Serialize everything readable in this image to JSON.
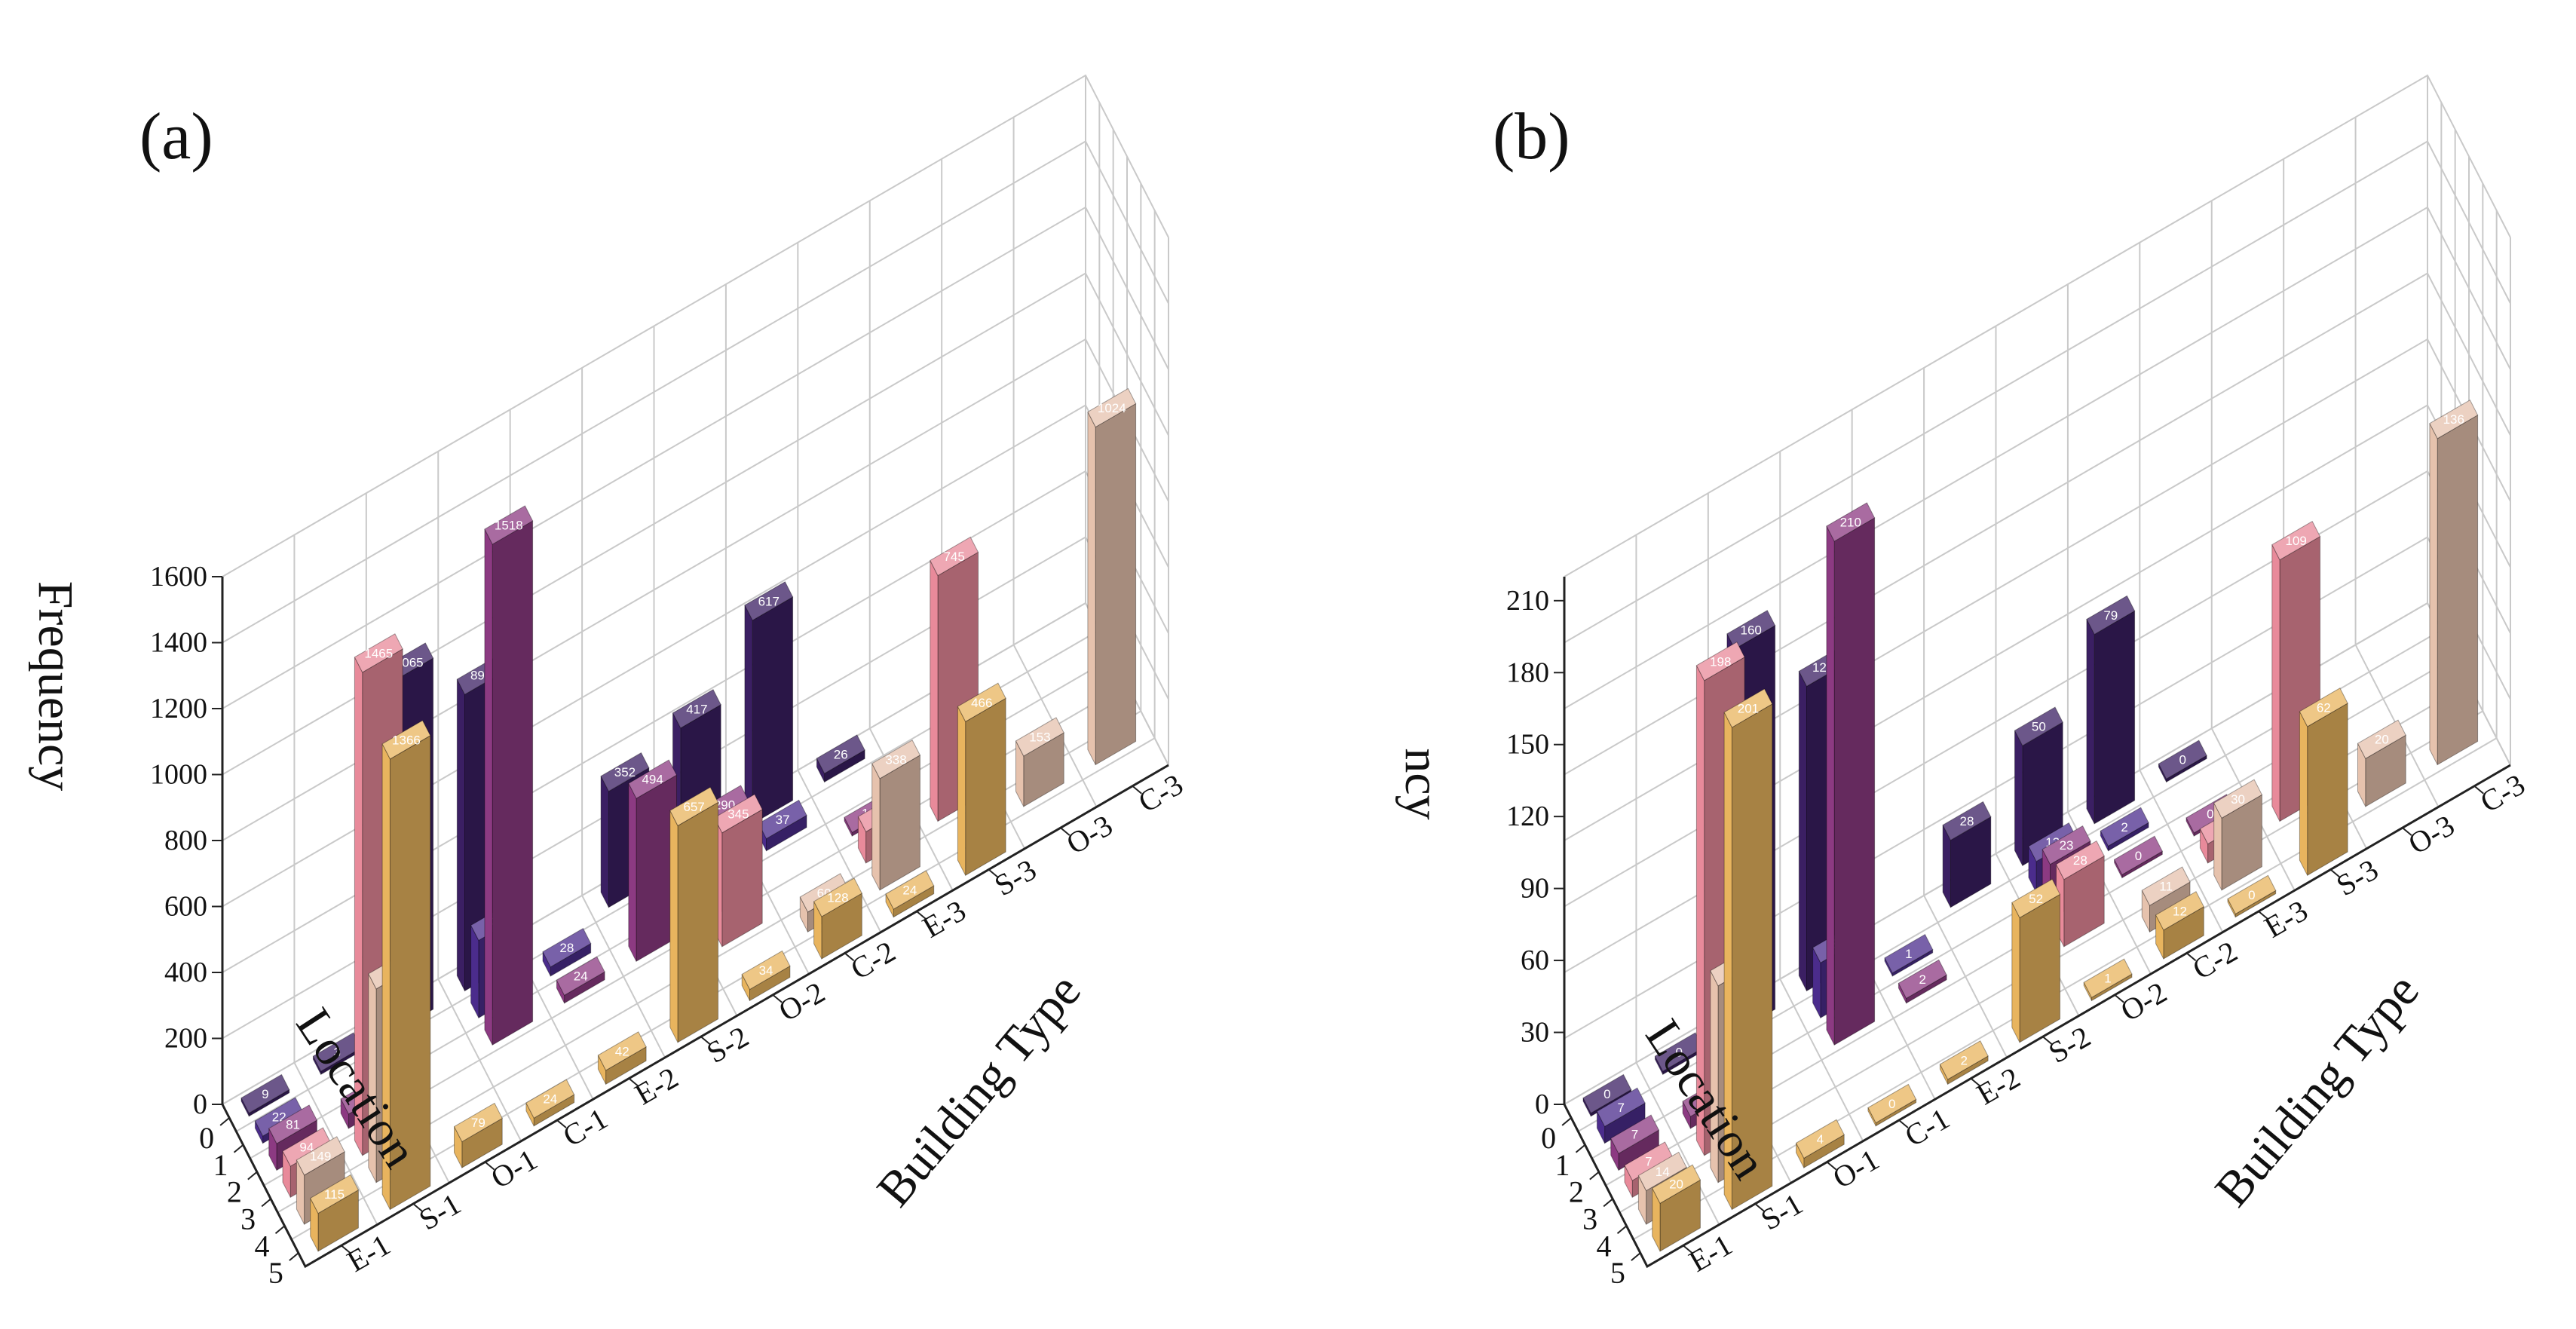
{
  "chart_data": [
    {
      "type": "bar3d",
      "panel_label": "(a)",
      "z_label": "Frequency",
      "x_label": "Location",
      "y_label": "Building Type",
      "x_ticks": [
        "0",
        "1",
        "2",
        "3",
        "4",
        "5"
      ],
      "y_ticks": [
        "E-1",
        "S-1",
        "O-1",
        "C-1",
        "E-2",
        "S-2",
        "O-2",
        "C-2",
        "E-3",
        "S-3",
        "O-3",
        "C-3"
      ],
      "z_ticks": [
        "0",
        "200",
        "400",
        "600",
        "800",
        "1000",
        "1200",
        "1400",
        "1600"
      ],
      "zlim": [
        0,
        1600
      ],
      "series": [
        {
          "location": "0",
          "color": "#3b1f63",
          "points": [
            {
              "type": "E-1",
              "value": 9
            },
            {
              "type": "S-1",
              "value": 3
            },
            {
              "type": "O-1",
              "value": 1065
            },
            {
              "type": "C-1",
              "value": 899
            },
            {
              "type": "S-2",
              "value": 352
            },
            {
              "type": "O-2",
              "value": 417
            },
            {
              "type": "C-2",
              "value": 617
            },
            {
              "type": "E-3",
              "value": 26
            }
          ]
        },
        {
          "location": "1",
          "color": "#4b2c8c",
          "points": [
            {
              "type": "E-1",
              "value": 22
            },
            {
              "type": "C-1",
              "value": 235
            },
            {
              "type": "E-2",
              "value": 28
            },
            {
              "type": "O-2",
              "value": 155
            },
            {
              "type": "C-2",
              "value": 37
            }
          ]
        },
        {
          "location": "2",
          "color": "#8c3a82",
          "points": [
            {
              "type": "E-1",
              "value": 81
            },
            {
              "type": "S-1",
              "value": 44
            },
            {
              "type": "C-1",
              "value": 1518
            },
            {
              "type": "E-2",
              "value": 24
            },
            {
              "type": "S-2",
              "value": 494
            },
            {
              "type": "O-2",
              "value": 290
            },
            {
              "type": "E-3",
              "value": 11
            }
          ]
        },
        {
          "location": "3",
          "color": "#e88a9a",
          "points": [
            {
              "type": "E-1",
              "value": 94
            },
            {
              "type": "S-1",
              "value": 1465
            },
            {
              "type": "O-2",
              "value": 345
            },
            {
              "type": "E-3",
              "value": 95
            },
            {
              "type": "S-3",
              "value": 745
            }
          ]
        },
        {
          "location": "4",
          "color": "#e6c2ad",
          "points": [
            {
              "type": "E-1",
              "value": 149
            },
            {
              "type": "S-1",
              "value": 587
            },
            {
              "type": "C-2",
              "value": 60
            },
            {
              "type": "E-3",
              "value": 338
            },
            {
              "type": "O-3",
              "value": 153
            },
            {
              "type": "C-3",
              "value": 1024
            }
          ]
        },
        {
          "location": "5",
          "color": "#e8b45e",
          "points": [
            {
              "type": "E-1",
              "value": 115
            },
            {
              "type": "S-1",
              "value": 1366
            },
            {
              "type": "O-1",
              "value": 79
            },
            {
              "type": "C-1",
              "value": 24
            },
            {
              "type": "E-2",
              "value": 42
            },
            {
              "type": "S-2",
              "value": 657
            },
            {
              "type": "O-2",
              "value": 34
            },
            {
              "type": "C-2",
              "value": 128
            },
            {
              "type": "E-3",
              "value": 24
            },
            {
              "type": "S-3",
              "value": 466
            }
          ]
        }
      ]
    },
    {
      "type": "bar3d",
      "panel_label": "(b)",
      "z_label": "ncy",
      "x_label": "Location",
      "y_label": "Building Type",
      "x_ticks": [
        "0",
        "1",
        "2",
        "3",
        "4",
        "5"
      ],
      "y_ticks": [
        "E-1",
        "S-1",
        "O-1",
        "C-1",
        "E-2",
        "S-2",
        "O-2",
        "C-2",
        "E-3",
        "S-3",
        "O-3",
        "C-3"
      ],
      "z_ticks": [
        "0",
        "30",
        "60",
        "90",
        "120",
        "150",
        "180",
        "210"
      ],
      "zlim": [
        0,
        220
      ],
      "series": [
        {
          "location": "0",
          "color": "#3b1f63",
          "points": [
            {
              "type": "E-1",
              "value": 0
            },
            {
              "type": "S-1",
              "value": 0
            },
            {
              "type": "O-1",
              "value": 160
            },
            {
              "type": "C-1",
              "value": 127
            },
            {
              "type": "S-2",
              "value": 28
            },
            {
              "type": "O-2",
              "value": 50
            },
            {
              "type": "C-2",
              "value": 79
            },
            {
              "type": "E-3",
              "value": 0
            }
          ]
        },
        {
          "location": "1",
          "color": "#4b2c8c",
          "points": [
            {
              "type": "E-1",
              "value": 7
            },
            {
              "type": "C-1",
              "value": 23
            },
            {
              "type": "E-2",
              "value": 1
            },
            {
              "type": "O-2",
              "value": 13
            },
            {
              "type": "C-2",
              "value": 2
            }
          ]
        },
        {
          "location": "2",
          "color": "#8c3a82",
          "points": [
            {
              "type": "E-1",
              "value": 7
            },
            {
              "type": "S-1",
              "value": 5
            },
            {
              "type": "C-1",
              "value": 210
            },
            {
              "type": "E-2",
              "value": 2
            },
            {
              "type": "O-2",
              "value": 23
            },
            {
              "type": "C-2",
              "value": 0
            },
            {
              "type": "E-3",
              "value": 0
            }
          ]
        },
        {
          "location": "3",
          "color": "#e88a9a",
          "points": [
            {
              "type": "E-1",
              "value": 7
            },
            {
              "type": "S-1",
              "value": 198
            },
            {
              "type": "O-2",
              "value": 28
            },
            {
              "type": "E-3",
              "value": 8
            },
            {
              "type": "S-3",
              "value": 109
            }
          ]
        },
        {
          "location": "4",
          "color": "#e6c2ad",
          "points": [
            {
              "type": "E-1",
              "value": 14
            },
            {
              "type": "S-1",
              "value": 82
            },
            {
              "type": "C-2",
              "value": 11
            },
            {
              "type": "E-3",
              "value": 30
            },
            {
              "type": "O-3",
              "value": 20
            },
            {
              "type": "C-3",
              "value": 136
            }
          ]
        },
        {
          "location": "5",
          "color": "#e8b45e",
          "points": [
            {
              "type": "E-1",
              "value": 20
            },
            {
              "type": "S-1",
              "value": 201
            },
            {
              "type": "O-1",
              "value": 4
            },
            {
              "type": "C-1",
              "value": 0
            },
            {
              "type": "E-2",
              "value": 2
            },
            {
              "type": "S-2",
              "value": 52
            },
            {
              "type": "O-2",
              "value": 1
            },
            {
              "type": "C-2",
              "value": 12
            },
            {
              "type": "E-3",
              "value": 0
            },
            {
              "type": "S-3",
              "value": 62
            }
          ]
        }
      ]
    }
  ]
}
